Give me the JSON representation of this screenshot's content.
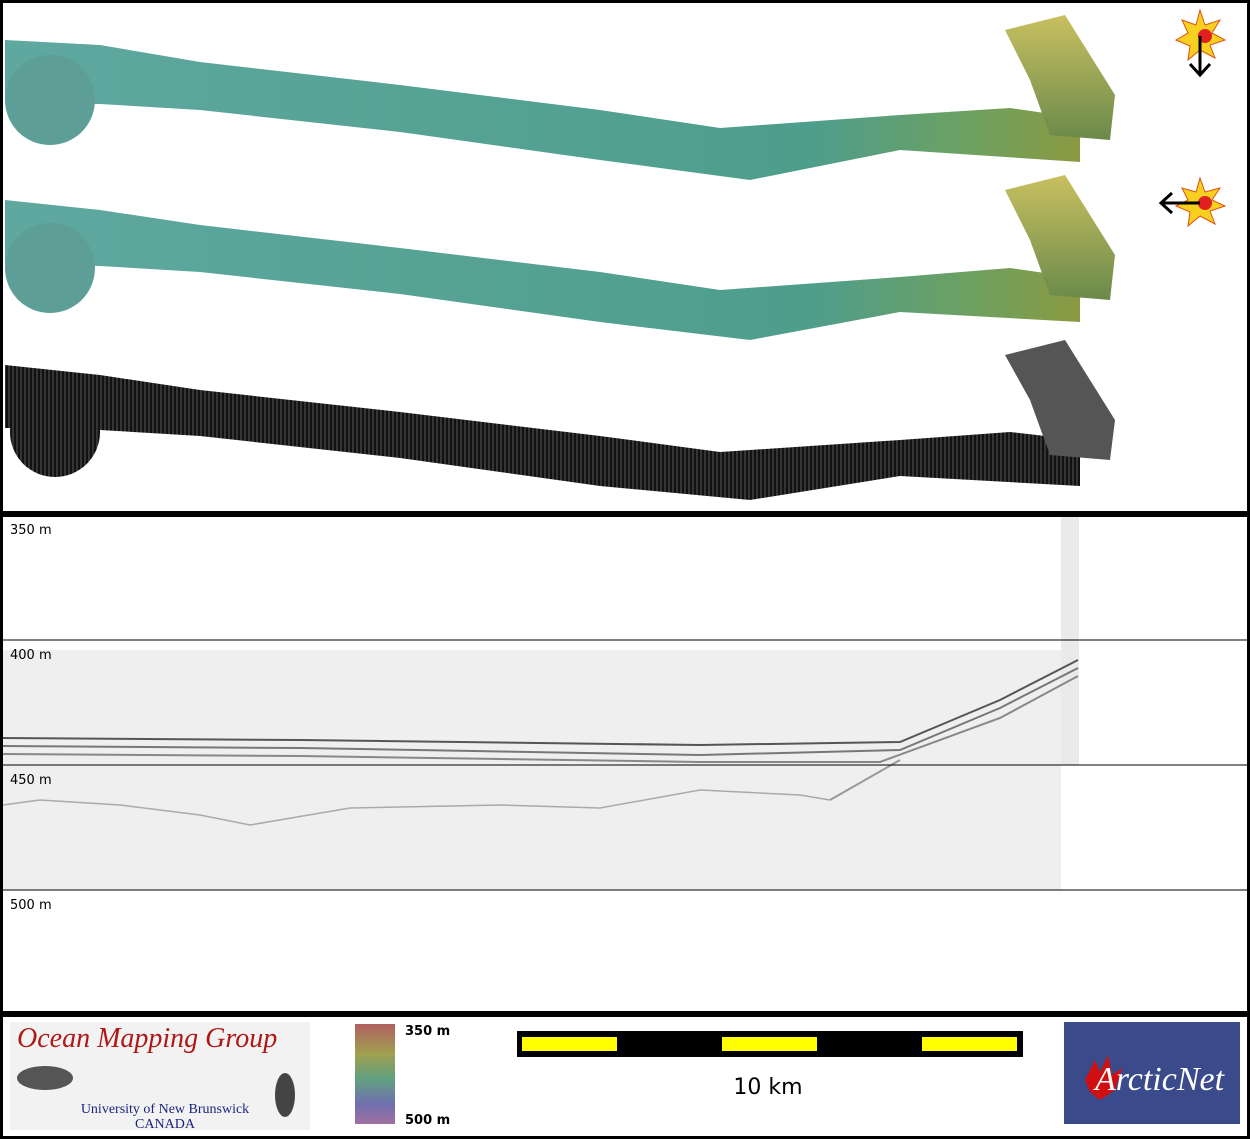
{
  "profile": {
    "depth_labels": [
      "350 m",
      "400 m",
      "450 m",
      "500 m"
    ]
  },
  "footer": {
    "logo": {
      "title": "Ocean Mapping Group",
      "subtitle": "University of New Brunswick",
      "country": "CANADA"
    },
    "colorbar": {
      "top": "350 m",
      "bottom": "500 m"
    },
    "scale": "10 km",
    "partner": "ArcticNet"
  }
}
